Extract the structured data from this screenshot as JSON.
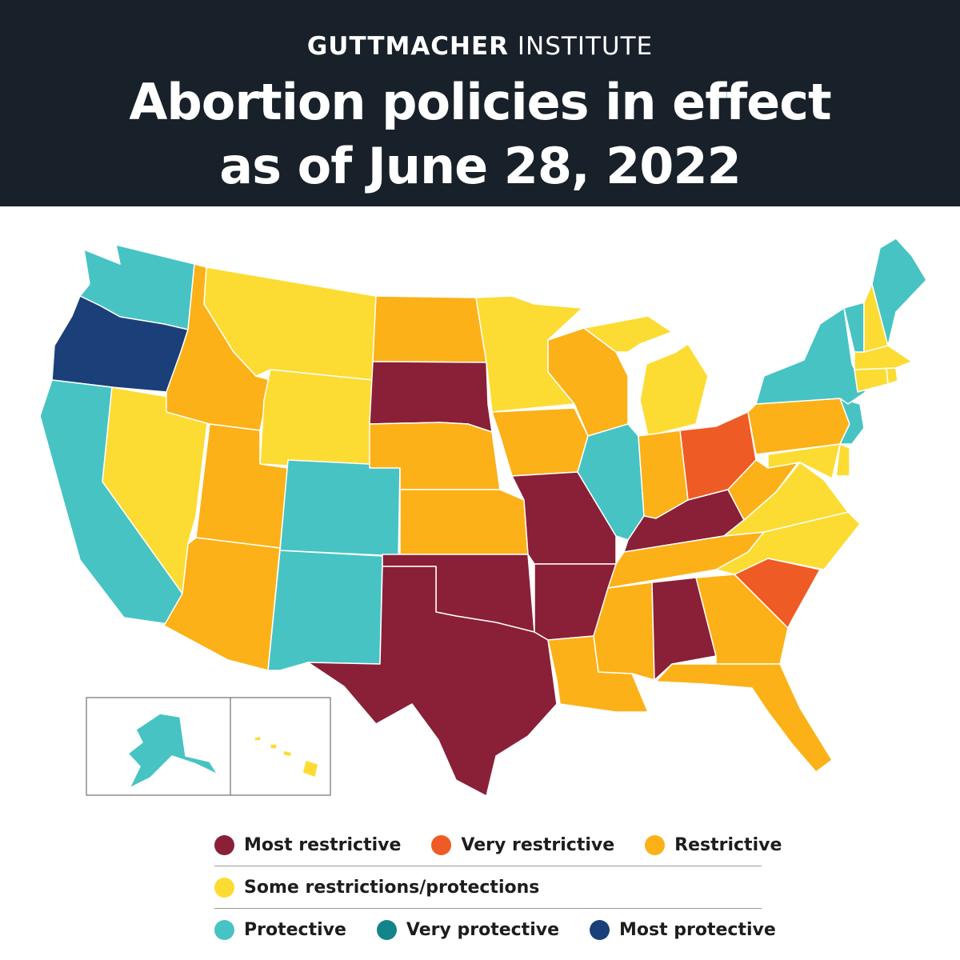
{
  "header": {
    "brand_bold": "GUTTMACHER",
    "brand_light": " INSTITUTE",
    "title_line1": "Abortion policies in effect",
    "title_line2": "as of June 28, 2022"
  },
  "colors": {
    "header_bg": "#182029",
    "most_restrictive": "#8a1f38",
    "very_restrictive": "#ef5b24",
    "restrictive": "#fbb117",
    "some": "#fcdc33",
    "protective": "#47c3c4",
    "very_protective": "#11858a",
    "most_protective": "#1b3f78"
  },
  "legend": {
    "most_restrictive": "Most restrictive",
    "very_restrictive": "Very restrictive",
    "restrictive": "Restrictive",
    "some": "Some restrictions/protections",
    "protective": "Protective",
    "very_protective": "Very protective",
    "most_protective": "Most protective"
  },
  "map_data": {
    "type": "choropleth",
    "states": {
      "WA": "protective",
      "OR": "most_protective",
      "CA": "protective",
      "NV": "some",
      "ID": "restrictive",
      "MT": "some",
      "WY": "some",
      "UT": "restrictive",
      "AZ": "restrictive",
      "CO": "protective",
      "NM": "protective",
      "ND": "restrictive",
      "SD": "most_restrictive",
      "NE": "restrictive",
      "KS": "restrictive",
      "OK": "most_restrictive",
      "TX": "most_restrictive",
      "MN": "some",
      "IA": "restrictive",
      "MO": "most_restrictive",
      "AR": "most_restrictive",
      "LA": "restrictive",
      "WI": "restrictive",
      "IL": "protective",
      "MI": "some",
      "IN": "restrictive",
      "OH": "very_restrictive",
      "KY": "most_restrictive",
      "TN": "restrictive",
      "MS": "restrictive",
      "AL": "most_restrictive",
      "GA": "restrictive",
      "FL": "restrictive",
      "SC": "very_restrictive",
      "NC": "some",
      "VA": "some",
      "WV": "restrictive",
      "PA": "restrictive",
      "NY": "protective",
      "VT": "protective",
      "NH": "some",
      "ME": "protective",
      "MA": "some",
      "CT": "some",
      "RI": "some",
      "NJ": "protective",
      "DE": "some",
      "MD": "some",
      "AK": "protective",
      "HI": "some"
    }
  }
}
